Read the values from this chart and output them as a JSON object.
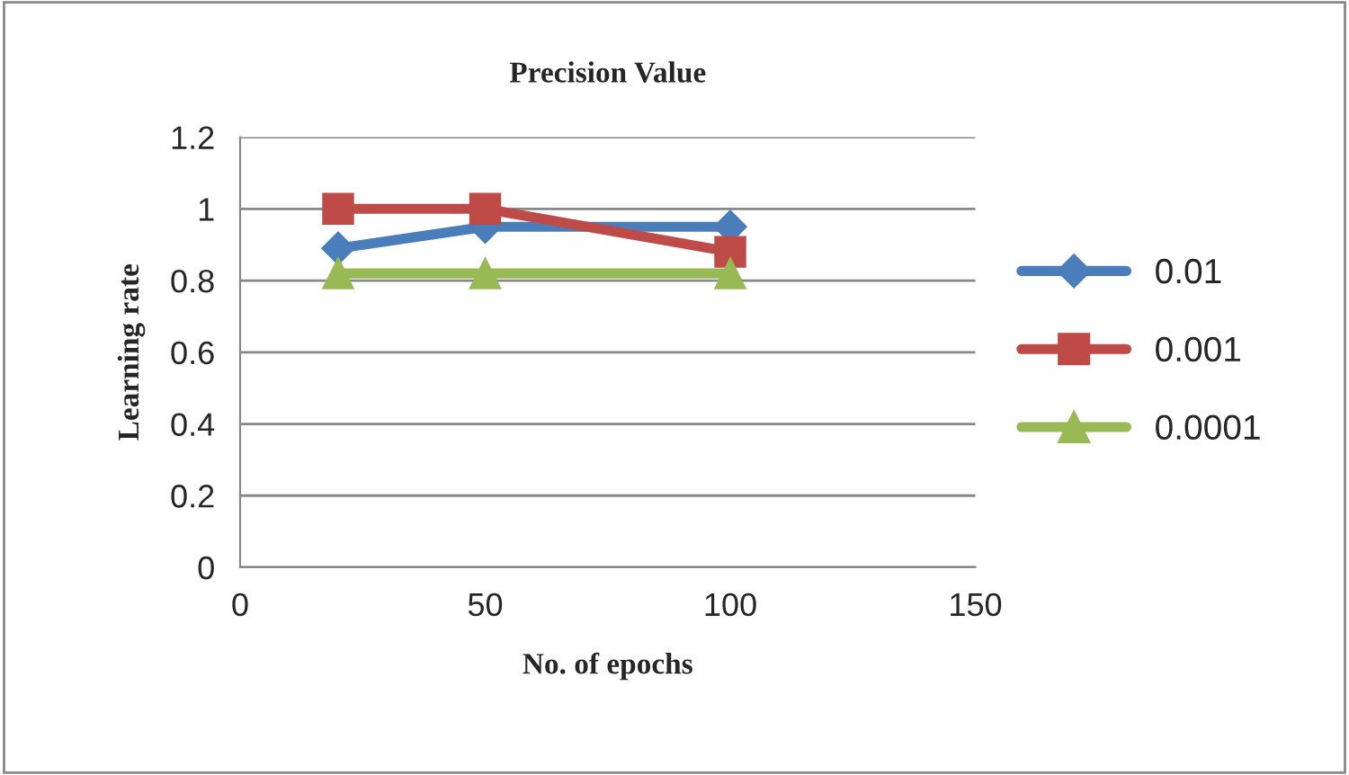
{
  "chart_data": {
    "type": "line",
    "title": "Precision Value",
    "xlabel": "No. of epochs",
    "ylabel": "Learning rate",
    "x": [
      20,
      50,
      100
    ],
    "series": [
      {
        "name": "0.01",
        "color": "#4a7ebb",
        "values": [
          0.89,
          0.95,
          0.95
        ],
        "marker": "diamond"
      },
      {
        "name": "0.001",
        "color": "#be4b48",
        "values": [
          1,
          1,
          0.88
        ],
        "marker": "square"
      },
      {
        "name": "0.0001",
        "color": "#98b954",
        "values": [
          0.82,
          0.82,
          0.82
        ],
        "marker": "triangle"
      }
    ],
    "xlim": [
      0,
      150
    ],
    "xticks": [
      0,
      50,
      100,
      150
    ],
    "ylim": [
      0,
      1.2
    ],
    "yticks": [
      0,
      0.2,
      0.4,
      0.6,
      0.8,
      1,
      1.2
    ],
    "grid": "y",
    "legend": "right",
    "line_style": "solid"
  }
}
